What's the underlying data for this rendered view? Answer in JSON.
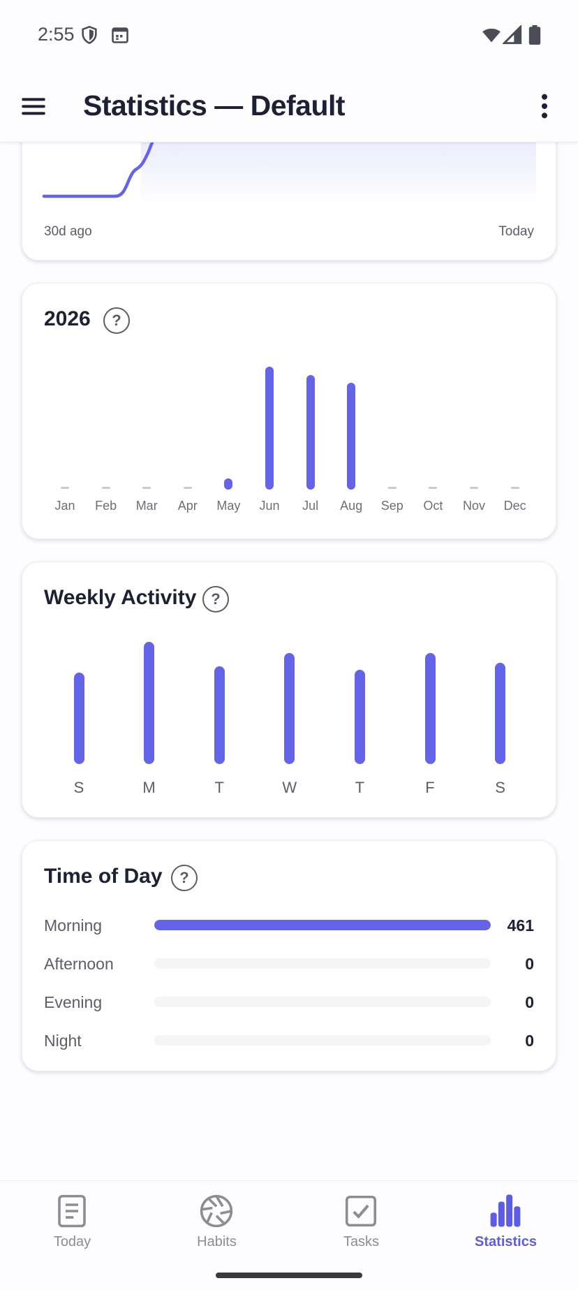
{
  "status_bar": {
    "time": "2:55"
  },
  "app_bar": {
    "title": "Statistics — Default"
  },
  "trend": {
    "start_label": "30d ago",
    "end_label": "Today"
  },
  "year_chart": {
    "title": "2026",
    "months": [
      "Jan",
      "Feb",
      "Mar",
      "Apr",
      "May",
      "Jun",
      "Jul",
      "Aug",
      "Sep",
      "Oct",
      "Nov",
      "Dec"
    ],
    "values": [
      0,
      0,
      0,
      0,
      9,
      100,
      93,
      87,
      0,
      0,
      0,
      0
    ]
  },
  "weekly_chart": {
    "title": "Weekly Activity",
    "days": [
      "S",
      "M",
      "T",
      "W",
      "T",
      "F",
      "S"
    ],
    "values": [
      75,
      100,
      80,
      91,
      77,
      91,
      83
    ]
  },
  "time_of_day": {
    "title": "Time of Day",
    "rows": [
      {
        "label": "Morning",
        "value": "461",
        "fraction": 1.0
      },
      {
        "label": "Afternoon",
        "value": "0",
        "fraction": 0
      },
      {
        "label": "Evening",
        "value": "0",
        "fraction": 0
      },
      {
        "label": "Night",
        "value": "0",
        "fraction": 0
      }
    ]
  },
  "colors": {
    "accent": "#6464ea",
    "track": "#f5f5f8",
    "dash": "#c9cad4"
  },
  "bottom_nav": {
    "items": [
      {
        "label": "Today",
        "icon": "document-icon",
        "active": false
      },
      {
        "label": "Habits",
        "icon": "aperture-icon",
        "active": false
      },
      {
        "label": "Tasks",
        "icon": "checkbox-icon",
        "active": false
      },
      {
        "label": "Statistics",
        "icon": "bar-chart-icon",
        "active": true
      }
    ]
  }
}
